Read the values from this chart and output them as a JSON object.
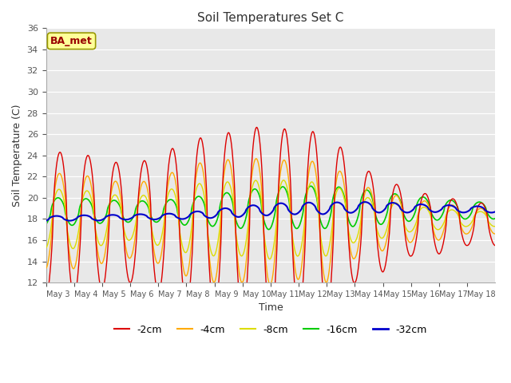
{
  "title": "Soil Temperatures Set C",
  "xlabel": "Time",
  "ylabel": "Soil Temperature (C)",
  "ylim": [
    12,
    36
  ],
  "yticks": [
    12,
    14,
    16,
    18,
    20,
    22,
    24,
    26,
    28,
    30,
    32,
    34,
    36
  ],
  "colors": {
    "-2cm": "#dd0000",
    "-4cm": "#ffaa00",
    "-8cm": "#dddd00",
    "-16cm": "#00cc00",
    "-32cm": "#0000cc"
  },
  "annotation_text": "BA_met",
  "annotation_color": "#990000",
  "annotation_bg": "#ffff99",
  "annotation_border": "#999900",
  "bg_color": "#e8e8e8",
  "x_labels": [
    "May 3",
    "May 4",
    "May 5",
    "May 6",
    "May 7",
    "May 8",
    "May 9",
    "May 10",
    "May 11",
    "May 12",
    "May 13",
    "May 14",
    "May 15",
    "May 16",
    "May 17",
    "May 18"
  ],
  "n_days": 16,
  "ppd": 48,
  "amp_2cm": [
    6.8,
    6.8,
    6.2,
    5.5,
    6.5,
    7.8,
    8.5,
    8.8,
    9.5,
    8.5,
    9.0,
    5.5,
    4.5,
    3.0,
    2.8,
    2.0
  ],
  "amp_4cm": [
    4.5,
    4.5,
    4.0,
    3.5,
    4.0,
    5.2,
    5.8,
    5.8,
    6.0,
    5.5,
    5.8,
    3.5,
    2.8,
    2.0,
    1.8,
    1.2
  ],
  "amp_8cm": [
    2.8,
    2.8,
    2.5,
    2.0,
    2.5,
    3.2,
    3.5,
    3.5,
    3.8,
    3.5,
    3.5,
    2.2,
    1.8,
    1.2,
    1.0,
    0.7
  ],
  "amp_16cm": [
    1.3,
    1.3,
    1.1,
    1.0,
    1.0,
    1.3,
    1.5,
    1.8,
    2.0,
    2.0,
    2.0,
    1.8,
    1.5,
    1.2,
    1.0,
    0.8
  ],
  "amp_32cm": [
    0.25,
    0.25,
    0.25,
    0.25,
    0.25,
    0.3,
    0.4,
    0.5,
    0.55,
    0.55,
    0.55,
    0.5,
    0.5,
    0.4,
    0.35,
    0.3
  ],
  "base_2cm": [
    17.5,
    17.5,
    17.5,
    17.5,
    17.5,
    17.5,
    17.5,
    17.5,
    17.5,
    17.5,
    17.5,
    17.5,
    17.5,
    17.5,
    17.5,
    17.5
  ],
  "base_4cm": [
    17.8,
    17.8,
    17.8,
    17.8,
    17.8,
    17.8,
    17.8,
    17.8,
    17.8,
    17.8,
    17.8,
    17.8,
    17.8,
    17.8,
    17.8,
    17.8
  ],
  "base_8cm": [
    18.0,
    18.0,
    18.0,
    18.0,
    18.0,
    18.0,
    18.0,
    18.0,
    18.0,
    18.0,
    18.0,
    18.0,
    18.0,
    18.0,
    18.0,
    18.0
  ],
  "base_16cm": [
    18.7,
    18.7,
    18.7,
    18.7,
    18.7,
    18.7,
    18.8,
    18.9,
    19.0,
    19.1,
    19.1,
    19.1,
    19.0,
    19.0,
    18.9,
    18.8
  ],
  "base_32cm": [
    18.0,
    18.1,
    18.1,
    18.2,
    18.2,
    18.3,
    18.5,
    18.7,
    18.9,
    19.0,
    19.0,
    19.1,
    19.1,
    19.0,
    19.0,
    18.9
  ],
  "phase_2cm": 0.0,
  "phase_4cm": 0.018,
  "phase_8cm": 0.035,
  "phase_16cm": 0.07,
  "phase_32cm": 0.14
}
